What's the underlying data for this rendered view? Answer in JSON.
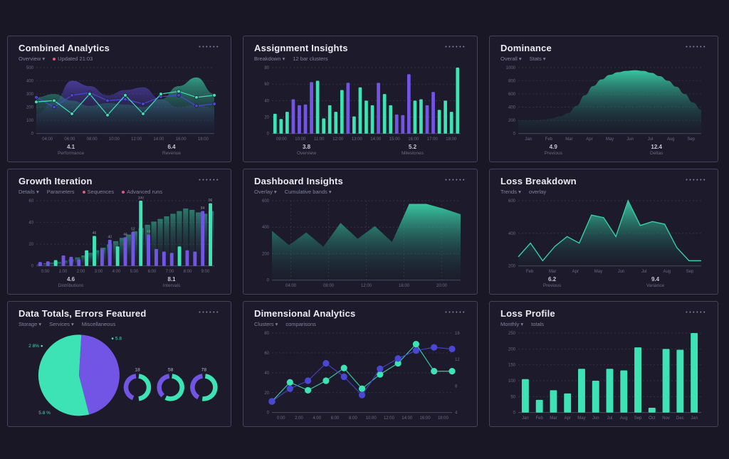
{
  "page": {
    "menu_dots": "••••••",
    "colors": {
      "page_bg": "#191725",
      "card_bg": "#1D1B2B",
      "card_border": "#454356",
      "title": "#ECEAF4",
      "subtitle": "#82809A",
      "teal": "#3DE3B4",
      "purple": "#7355E6",
      "blue": "#4A47D5",
      "pink": "#E25A82",
      "grid": "#3B3950",
      "axis": "#514F66",
      "tick": "#6B6880",
      "stat_value": "#C8C5D6",
      "stat_label": "#6B6880",
      "teal_area_top": "#3BD9AD",
      "teal_area_bottom": "#17323E",
      "purple_area_top": "#6450E0",
      "purple_area_bottom": "#241F45"
    }
  },
  "cards": [
    {
      "title": "Combined Analytics",
      "subtitle_items": [
        {
          "label": "Overview ▾",
          "dot": null
        },
        {
          "label": "Updated 21:03",
          "dot": "#E25A82"
        }
      ],
      "footers": [
        {
          "value": "4.1",
          "label": "Performance"
        },
        {
          "value": "6.4",
          "label": "Revenue"
        }
      ]
    },
    {
      "title": "Assignment Insights",
      "subtitle_items": [
        {
          "label": "Breakdown ▾",
          "dot": null
        },
        {
          "label": "12 bar clusters",
          "dot": null
        }
      ],
      "footers": [
        {
          "value": "3.8",
          "label": "Overview"
        },
        {
          "value": "5.2",
          "label": "Milestones"
        }
      ]
    },
    {
      "title": "Dominance",
      "subtitle_items": [
        {
          "label": "Overall ▾",
          "dot": null
        },
        {
          "label": "Stats ▾",
          "dot": null
        }
      ],
      "footers": [
        {
          "value": "4.9",
          "label": "Previous"
        },
        {
          "value": "12.4",
          "label": "Deltas"
        }
      ]
    },
    {
      "title": "Growth Iteration",
      "subtitle_items": [
        {
          "label": "Details ▾",
          "dot": null
        },
        {
          "label": "Parameters",
          "dot": null
        },
        {
          "label": "Sequences",
          "dot": "#E25A82"
        },
        {
          "label": "Advanced runs",
          "dot": "#E25A82"
        }
      ],
      "footers": [
        {
          "value": "4.6",
          "label": "Distributions"
        },
        {
          "value": "8.1",
          "label": "Intervals"
        }
      ]
    },
    {
      "title": "Dashboard Insights",
      "subtitle_items": [
        {
          "label": "Overlay ▾",
          "dot": null
        },
        {
          "label": "Cumulative bands ▾",
          "dot": null
        }
      ],
      "footers": []
    },
    {
      "title": "Loss Breakdown",
      "subtitle_items": [
        {
          "label": "Trends ▾",
          "dot": null
        },
        {
          "label": "overlay",
          "dot": null
        }
      ],
      "footers": [
        {
          "value": "6.2",
          "label": "Previous"
        },
        {
          "value": "9.4",
          "label": "Variance"
        }
      ]
    },
    {
      "title": "Data Totals, Errors Featured",
      "subtitle_items": [
        {
          "label": "Storage ▾",
          "dot": null
        },
        {
          "label": "Services ▾",
          "dot": null
        },
        {
          "label": "Miscellaneous",
          "dot": null
        }
      ],
      "footers": []
    },
    {
      "title": "Dimensional Analytics",
      "subtitle_items": [
        {
          "label": "Clusters ▾",
          "dot": null
        },
        {
          "label": "comparisons",
          "dot": null
        }
      ],
      "footers": []
    },
    {
      "title": "Loss Profile",
      "subtitle_items": [
        {
          "label": "Monthly ▾",
          "dot": null
        },
        {
          "label": "totals",
          "dot": null
        }
      ],
      "footers": []
    }
  ],
  "chart_data": [
    {
      "type": "multi",
      "title": "Combined Analytics",
      "y_ticks": [
        "500",
        "400",
        "300",
        "200",
        "100",
        "0"
      ],
      "x_ticks": [
        "04:00",
        "06:00",
        "08:00",
        "10:00",
        "12:00",
        "14:00",
        "16:00",
        "18:00"
      ],
      "ylim": [
        0,
        100
      ],
      "areas": [
        {
          "color": "purple",
          "values": [
            30,
            48,
            80,
            72,
            58,
            66,
            70,
            52,
            40,
            44,
            38
          ]
        },
        {
          "color": "teal",
          "values": [
            55,
            60,
            50,
            42,
            46,
            44,
            40,
            52,
            72,
            85,
            60
          ]
        }
      ],
      "lines": [
        {
          "color": "blue",
          "values": [
            55,
            40,
            58,
            62,
            50,
            52,
            45,
            56,
            58,
            42,
            45
          ]
        },
        {
          "color": "teal",
          "values": [
            48,
            50,
            30,
            60,
            28,
            58,
            30,
            60,
            64,
            55,
            58
          ]
        }
      ]
    },
    {
      "type": "bars",
      "title": "Assignment Insights",
      "bar_width": 0.55,
      "y_ticks": [
        "80",
        "60",
        "40",
        "20",
        "0"
      ],
      "x_ticks": [
        "09:00",
        "10:00",
        "11:00",
        "12:00",
        "13:00",
        "14:00",
        "15:00",
        "16:00",
        "17:00",
        "18:00"
      ],
      "ylim": [
        0,
        100
      ],
      "values": [
        30,
        22,
        33,
        52,
        43,
        44,
        78,
        80,
        23,
        43,
        33,
        66,
        77,
        26,
        70,
        50,
        43,
        77,
        60,
        43,
        29,
        28,
        90,
        50,
        52,
        43,
        63,
        36,
        50,
        33,
        100
      ],
      "colors": [
        "teal",
        "teal",
        "teal",
        "purple",
        "purple",
        "purple",
        "purple",
        "teal",
        "teal",
        "teal",
        "teal",
        "teal",
        "purple",
        "teal",
        "teal",
        "teal",
        "teal",
        "purple",
        "teal",
        "teal",
        "purple",
        "purple",
        "purple",
        "teal",
        "teal",
        "purple",
        "purple",
        "teal",
        "teal",
        "teal",
        "teal"
      ]
    },
    {
      "type": "area",
      "title": "Dominance",
      "smooth": true,
      "y_ticks": [
        "1000",
        "800",
        "600",
        "400",
        "200",
        "0"
      ],
      "x_ticks": [
        "Jan",
        "Feb",
        "Mar",
        "Apr",
        "May",
        "Jun",
        "Jul",
        "Aug",
        "Sep"
      ],
      "ylim": [
        0,
        100
      ],
      "values": [
        20,
        20,
        20,
        21,
        23,
        26,
        31,
        42,
        58,
        72,
        82,
        89,
        93,
        95,
        96,
        95,
        92,
        87,
        80,
        71,
        60,
        47,
        36
      ]
    },
    {
      "type": "combo",
      "title": "Growth Iteration",
      "y_ticks": [
        "60",
        "40",
        "20",
        "0"
      ],
      "x_ticks": [
        "0:00",
        "1:00",
        "2:00",
        "3:00",
        "4:00",
        "5:00",
        "6:00",
        "7:00",
        "8:00",
        "9:00"
      ],
      "ylim": [
        0,
        100
      ],
      "bg_values": [
        3,
        4,
        5,
        6,
        8,
        10,
        13,
        16,
        20,
        24,
        28,
        33,
        38,
        43,
        48,
        53,
        58,
        63,
        68,
        72,
        76,
        80,
        84,
        88,
        86,
        82,
        80,
        84
      ],
      "values": [
        6,
        7,
        9,
        16,
        14,
        10,
        24,
        46,
        26,
        40,
        30,
        44,
        52,
        100,
        48,
        26,
        22,
        20,
        30,
        24,
        22,
        84,
        96
      ],
      "colors": [
        "purple",
        "purple",
        "teal",
        "purple",
        "purple",
        "purple",
        "teal",
        "teal",
        "purple",
        "purple",
        "teal",
        "purple",
        "purple",
        "teal",
        "purple",
        "purple",
        "purple",
        "purple",
        "teal",
        "purple",
        "purple",
        "purple",
        "teal"
      ],
      "labels_over": true
    },
    {
      "type": "area",
      "title": "Dashboard Insights",
      "smooth": false,
      "vgrid": true,
      "y_ticks": [
        "600",
        "400",
        "200",
        "0"
      ],
      "x_ticks": [
        "04:00",
        "08:00",
        "12:00",
        "16:00",
        "20:00"
      ],
      "ylim": [
        0,
        100
      ],
      "values": [
        62,
        44,
        60,
        42,
        72,
        52,
        68,
        48,
        96,
        96,
        90,
        83
      ]
    },
    {
      "type": "area",
      "title": "Loss Breakdown",
      "smooth": false,
      "stroke": true,
      "y_ticks": [
        "600",
        "400",
        "200"
      ],
      "x_ticks": [
        "Feb",
        "Mar",
        "Apr",
        "May",
        "Jun",
        "Jul",
        "Aug",
        "Sep"
      ],
      "ylim": [
        0,
        100
      ],
      "values": [
        14,
        35,
        8,
        30,
        45,
        35,
        78,
        74,
        45,
        100,
        62,
        68,
        64,
        28,
        8,
        8
      ]
    },
    {
      "type": "pie",
      "title": "Data Totals, Errors Featured",
      "slices": [
        {
          "color": "teal",
          "value": 55
        },
        {
          "color": "purple",
          "value": 45
        }
      ],
      "labels": [
        {
          "text": "2 8% ●",
          "x": 0.05,
          "y": 0.2,
          "color": "#43D9B8"
        },
        {
          "text": "● 5.8",
          "x": 0.46,
          "y": 0.12,
          "color": "#43D9B8"
        },
        {
          "text": "5.8 %",
          "x": 0.1,
          "y": 0.92,
          "color": "#43D9B8"
        }
      ],
      "donuts": [
        {
          "label": "18",
          "teal": 0.46,
          "purple": 0.42
        },
        {
          "label": "58",
          "teal": 0.55,
          "purple": 0.36
        },
        {
          "label": "78",
          "teal": 0.5,
          "purple": 0.4
        }
      ]
    },
    {
      "type": "dots",
      "title": "Dimensional Analytics",
      "y_ticks": [
        "80",
        "60",
        "40",
        "20",
        "0"
      ],
      "y_ticks_right": [
        "16",
        "12",
        "8",
        "4"
      ],
      "x_ticks": [
        "0:00",
        "2:00",
        "4:00",
        "6:00",
        "8:00",
        "10:00",
        "12:00",
        "14:00",
        "16:00",
        "18:00"
      ],
      "ylim": [
        0,
        100
      ],
      "series": [
        {
          "name": "series-teal",
          "color": "teal",
          "values": [
            14,
            38,
            28,
            40,
            56,
            30,
            48,
            62,
            86,
            52,
            52
          ]
        },
        {
          "name": "series-blue",
          "color": "blue",
          "values": [
            14,
            30,
            40,
            62,
            45,
            22,
            55,
            68,
            78,
            82,
            80
          ]
        }
      ]
    },
    {
      "type": "bars",
      "title": "Loss Profile",
      "bar_width": 0.5,
      "y_ticks": [
        "250",
        "200",
        "150",
        "100",
        "50",
        "0"
      ],
      "x_ticks": [
        "Jan",
        "Feb",
        "Mar",
        "Apr",
        "May",
        "Jun",
        "Jul",
        "Aug",
        "Sep",
        "Oct",
        "Nov",
        "Dec",
        "Jan"
      ],
      "ylim": [
        0,
        100
      ],
      "values": [
        42,
        16,
        28,
        24,
        55,
        40,
        55,
        53,
        82,
        6,
        80,
        79,
        100
      ]
    }
  ]
}
